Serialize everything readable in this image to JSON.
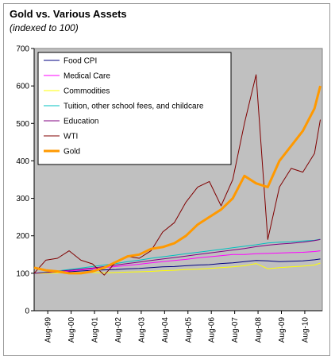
{
  "chart_data": {
    "type": "line",
    "title": "Gold vs. Various Assets",
    "subtitle": "(indexed to 100)",
    "xlabel": "",
    "ylabel": "",
    "ylim": [
      0,
      700
    ],
    "y_ticks": [
      0,
      100,
      200,
      300,
      400,
      500,
      600,
      700
    ],
    "x_ticks": [
      "Aug-99",
      "Aug-00",
      "Aug-01",
      "Aug-02",
      "Aug-03",
      "Aug-04",
      "Aug-05",
      "Aug-06",
      "Aug-07",
      "Aug-08",
      "Aug-09",
      "Aug-10"
    ],
    "grid": false,
    "legend_position": "top-left",
    "plot_background": "#c0c0c0",
    "x": [
      "1999-01",
      "1999-07",
      "2000-01",
      "2000-07",
      "2001-01",
      "2001-07",
      "2002-01",
      "2002-07",
      "2003-01",
      "2003-07",
      "2004-01",
      "2004-07",
      "2005-01",
      "2005-07",
      "2006-01",
      "2006-07",
      "2007-01",
      "2007-07",
      "2008-01",
      "2008-07",
      "2009-01",
      "2009-07",
      "2010-01",
      "2010-07",
      "2011-01",
      "2011-04"
    ],
    "series": [
      {
        "name": "Food CPI",
        "color": "#000080",
        "width": 1,
        "values": [
          100,
          101,
          102,
          104,
          106,
          108,
          109,
          110,
          112,
          113,
          115,
          117,
          118,
          120,
          122,
          123,
          126,
          128,
          131,
          134,
          133,
          131,
          132,
          133,
          136,
          138
        ]
      },
      {
        "name": "Medical Care",
        "color": "#ff00ff",
        "width": 1,
        "values": [
          100,
          102,
          104,
          106,
          109,
          112,
          115,
          118,
          121,
          124,
          128,
          131,
          134,
          137,
          141,
          144,
          147,
          150,
          150,
          152,
          153,
          154,
          155,
          156,
          158,
          160
        ]
      },
      {
        "name": "Commodities",
        "color": "#ffff00",
        "width": 1,
        "values": [
          100,
          100,
          101,
          101,
          102,
          102,
          101,
          102,
          103,
          104,
          105,
          107,
          108,
          110,
          111,
          113,
          115,
          117,
          120,
          126,
          112,
          115,
          117,
          119,
          122,
          127
        ]
      },
      {
        "name": "Tuition, other school fees, and childcare",
        "color": "#00c0c0",
        "width": 1,
        "values": [
          100,
          103,
          106,
          110,
          114,
          118,
          122,
          126,
          131,
          135,
          140,
          144,
          148,
          152,
          156,
          160,
          164,
          168,
          172,
          176,
          181,
          183,
          184,
          186,
          188,
          191
        ]
      },
      {
        "name": "Education",
        "color": "#800080",
        "width": 1,
        "values": [
          100,
          102,
          105,
          108,
          111,
          114,
          118,
          122,
          126,
          130,
          134,
          138,
          142,
          146,
          150,
          154,
          158,
          162,
          166,
          171,
          175,
          178,
          180,
          183,
          187,
          190
        ]
      },
      {
        "name": "WTI",
        "color": "#800000",
        "width": 1,
        "values": [
          100,
          135,
          140,
          160,
          135,
          125,
          95,
          130,
          145,
          140,
          160,
          210,
          235,
          290,
          330,
          345,
          280,
          350,
          500,
          630,
          190,
          330,
          380,
          370,
          420,
          510
        ]
      },
      {
        "name": "Gold",
        "color": "#ff9900",
        "width": 3,
        "values": [
          115,
          108,
          105,
          100,
          100,
          105,
          115,
          130,
          145,
          150,
          165,
          170,
          180,
          200,
          230,
          250,
          270,
          300,
          360,
          340,
          330,
          400,
          440,
          480,
          540,
          600
        ]
      }
    ]
  }
}
